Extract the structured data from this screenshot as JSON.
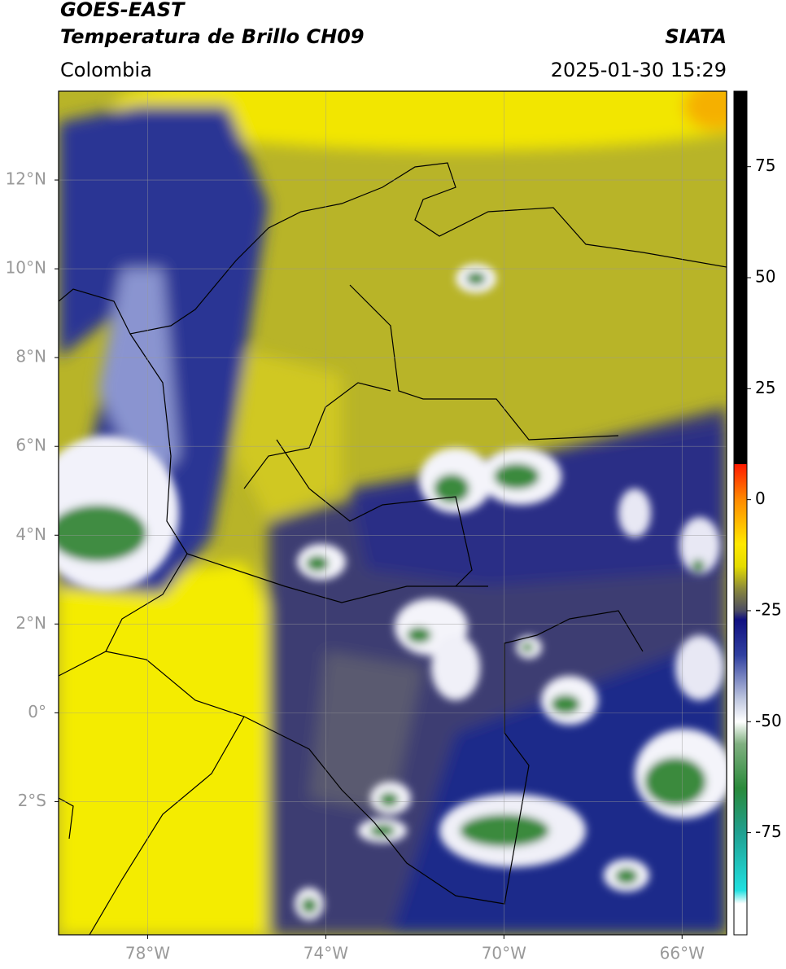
{
  "header": {
    "title": "GOES-EAST",
    "subtitle": "Temperatura de Brillo CH09",
    "region": "Colombia",
    "source": "SIATA",
    "timestamp": "2025-01-30 15:29"
  },
  "map": {
    "lonlim": [
      -80,
      -65
    ],
    "latlim": [
      -5,
      14
    ],
    "grid": true,
    "lonticks": [
      {
        "value": -78,
        "label": "78°W"
      },
      {
        "value": -74,
        "label": "74°W"
      },
      {
        "value": -70,
        "label": "70°W"
      },
      {
        "value": -66,
        "label": "66°W"
      }
    ],
    "latticks": [
      {
        "value": 12,
        "label": "12°N"
      },
      {
        "value": 10,
        "label": "10°N"
      },
      {
        "value": 8,
        "label": "8°N"
      },
      {
        "value": 6,
        "label": "6°N"
      },
      {
        "value": 4,
        "label": "4°N"
      },
      {
        "value": 2,
        "label": "2°N"
      },
      {
        "value": 0,
        "label": "0°"
      },
      {
        "value": -2,
        "label": "2°S"
      }
    ]
  },
  "colorbar": {
    "lim": [
      -98,
      92
    ],
    "ticks": [
      75,
      50,
      25,
      0,
      -25,
      -50,
      -75
    ]
  }
}
